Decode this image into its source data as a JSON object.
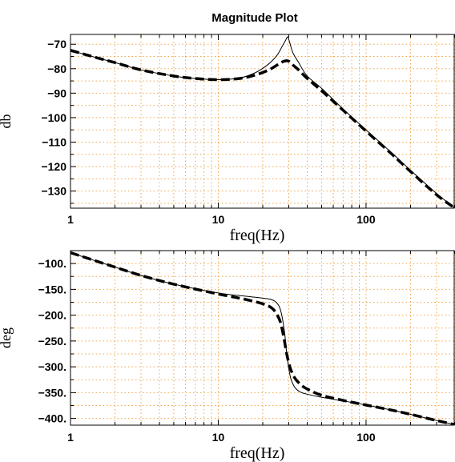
{
  "chart_data": [
    {
      "type": "line",
      "title": "Magnitude Plot",
      "xlabel": "freq(Hz)",
      "ylabel": "db",
      "x_scale": "log",
      "xlim": [
        1,
        400
      ],
      "ylim": [
        -137,
        -66
      ],
      "x_ticks": [
        1,
        10,
        100
      ],
      "x_tick_labels": [
        "1",
        "10",
        "100"
      ],
      "y_ticks": [
        -70,
        -80,
        -90,
        -100,
        -110,
        -120,
        -130
      ],
      "y_tick_labels": [
        "-70",
        "-80",
        "-90",
        "-100",
        "-110",
        "-120",
        "-130"
      ],
      "grid": true,
      "grid_style": "dotted",
      "grid_color": "#f2a64a",
      "series": [
        {
          "style": "solid-thin",
          "color": "#000000",
          "x": [
            1,
            1.5,
            2,
            3,
            5,
            7,
            10,
            14,
            18,
            22,
            25,
            27,
            28.5,
            29.5,
            30.5,
            32,
            35,
            40,
            50,
            70,
            100,
            150,
            200,
            300,
            400
          ],
          "y": [
            -72.5,
            -75.5,
            -77.5,
            -80.5,
            -83,
            -84,
            -84.5,
            -83.8,
            -81.5,
            -78,
            -74.5,
            -71,
            -68.5,
            -67,
            -69.5,
            -73.5,
            -77.5,
            -83,
            -88,
            -96.5,
            -105,
            -114.5,
            -121.5,
            -131,
            -137
          ]
        },
        {
          "style": "dashed-thick",
          "color": "#000000",
          "x": [
            1,
            1.5,
            2,
            3,
            5,
            7,
            10,
            14,
            18,
            22,
            25,
            27,
            28.5,
            29.5,
            30.5,
            32,
            35,
            40,
            50,
            70,
            100,
            150,
            200,
            300,
            400
          ],
          "y": [
            -72.5,
            -75.5,
            -77.5,
            -80.5,
            -83,
            -84,
            -84.5,
            -84,
            -82.5,
            -80.5,
            -78.5,
            -77.3,
            -76.8,
            -76.8,
            -77.2,
            -78.5,
            -80.5,
            -84,
            -89,
            -97,
            -105.5,
            -115,
            -122,
            -131.5,
            -137
          ]
        }
      ]
    },
    {
      "type": "line",
      "title": "",
      "xlabel": "freq(Hz)",
      "ylabel": "deg",
      "x_scale": "log",
      "xlim": [
        1,
        400
      ],
      "ylim": [
        -413,
        -75
      ],
      "x_ticks": [
        1,
        10,
        100
      ],
      "x_tick_labels": [
        "1",
        "10",
        "100"
      ],
      "y_ticks": [
        -100,
        -150,
        -200,
        -250,
        -300,
        -350,
        -400
      ],
      "y_tick_labels": [
        "-100.",
        "-150.",
        "-200.",
        "-250.",
        "-300.",
        "-350.",
        "-400."
      ],
      "grid": true,
      "grid_style": "dotted",
      "grid_color": "#f2a64a",
      "series": [
        {
          "style": "solid-thin",
          "color": "#000000",
          "x": [
            1,
            2,
            3,
            5,
            10,
            15,
            20,
            23,
            25,
            26.5,
            28,
            29,
            30,
            31,
            33,
            36,
            40,
            50,
            70,
            100,
            150,
            200,
            300,
            400
          ],
          "y": [
            -79,
            -107,
            -123,
            -140,
            -157,
            -163,
            -167,
            -170,
            -177,
            -192,
            -230,
            -272,
            -303,
            -323,
            -340,
            -349,
            -353,
            -359,
            -366,
            -374,
            -384,
            -392,
            -404,
            -412
          ]
        },
        {
          "style": "dashed-thick",
          "color": "#000000",
          "x": [
            1,
            2,
            3,
            5,
            10,
            15,
            20,
            23,
            25,
            26.5,
            28,
            29,
            30,
            31,
            33,
            36,
            40,
            50,
            70,
            100,
            150,
            200,
            300,
            400
          ],
          "y": [
            -79,
            -107,
            -123,
            -140,
            -159,
            -169,
            -178,
            -186,
            -199,
            -216,
            -249,
            -274,
            -292,
            -306,
            -322,
            -334,
            -343,
            -355,
            -365,
            -374,
            -384,
            -392,
            -404,
            -412
          ]
        }
      ]
    }
  ]
}
